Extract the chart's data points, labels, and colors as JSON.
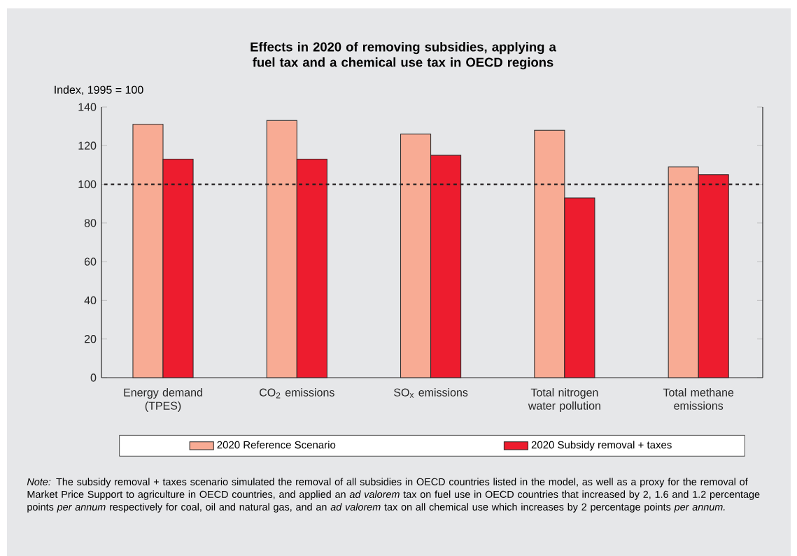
{
  "chart_data": {
    "type": "bar",
    "title": "Effects in 2020 of removing subsidies, applying a fuel tax and a chemical use tax in OECD regions",
    "ylabel": "Index, 1995 = 100",
    "categories": [
      "Energy demand (TPES)",
      "CO$_{2}$ emissions",
      "SO$_{x}$ emissions",
      "Total nitrogen water pollution",
      "Total methane emissions"
    ],
    "series": [
      {
        "name": "2020 Reference Scenario",
        "color": "#f8ab94",
        "values": [
          131,
          133,
          126,
          128,
          109
        ]
      },
      {
        "name": "2020 Subsidy removal + taxes",
        "color": "#ed1c2e",
        "values": [
          113,
          113,
          115,
          93,
          105
        ]
      }
    ],
    "ylim": [
      0,
      140
    ],
    "yticks": [
      0,
      20,
      40,
      60,
      80,
      100,
      120,
      140
    ],
    "ref_lines": [
      {
        "axis": "y",
        "value": 100,
        "color": "#231f20",
        "line_style": "dotted"
      }
    ],
    "legend": "bottom",
    "annotations": [
      "*Note:* The subsidy removal + taxes scenario simulated the removal of all subsidies in OECD countries listed in the model, as well as a proxy for the removal of Market Price Support to agriculture in OECD countries, and applied an *ad valorem* tax on fuel use in OECD countries that increased by 2, 1.6 and 1.2 percentage points *per annum* respectively for coal, oil and natural gas, and an *ad valorem* tax on all chemical use which increases by 2 percentage points *per annum.*"
    ]
  }
}
